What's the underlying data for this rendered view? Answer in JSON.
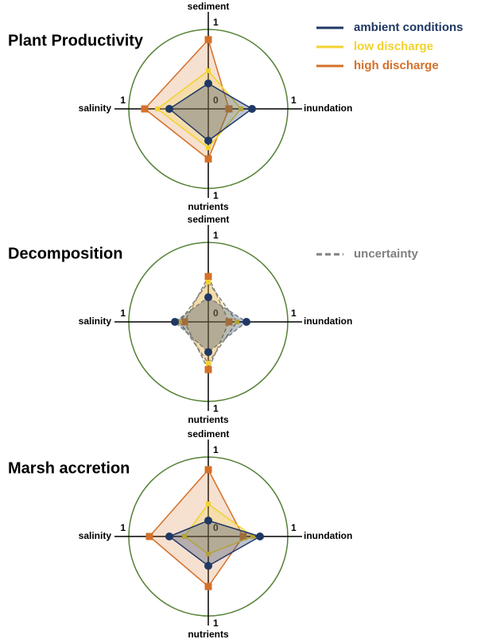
{
  "chart_data": [
    {
      "type": "radar",
      "title": "Plant Productivity",
      "categories": [
        "sediment",
        "inundation",
        "nutrients",
        "salinity"
      ],
      "rlim": [
        0,
        1
      ],
      "rticks": [
        0,
        1
      ],
      "legend": "top-right",
      "series": [
        {
          "name": "ambient conditions",
          "color": "#1f3864",
          "values": [
            0.32,
            0.55,
            0.4,
            0.49
          ]
        },
        {
          "name": "low discharge",
          "color": "#f2d22e",
          "values": [
            0.48,
            0.41,
            0.49,
            0.64
          ]
        },
        {
          "name": "high discharge",
          "color": "#d4702a",
          "values": [
            0.87,
            0.26,
            0.63,
            0.8
          ]
        }
      ]
    },
    {
      "type": "radar",
      "title": "Decomposition",
      "categories": [
        "sediment",
        "inundation",
        "nutrients",
        "salinity"
      ],
      "rlim": [
        0,
        1
      ],
      "rticks": [
        0,
        1
      ],
      "dashed": true,
      "dash_label": "uncertainty",
      "dash_color": "#7f7f7f",
      "series": [
        {
          "color": "#1f3864",
          "values": [
            0.31,
            0.48,
            0.38,
            0.42
          ]
        },
        {
          "color": "#f2d22e",
          "values": [
            0.5,
            0.36,
            0.52,
            0.36
          ]
        },
        {
          "color": "#d4702a",
          "values": [
            0.57,
            0.26,
            0.6,
            0.3
          ]
        }
      ]
    },
    {
      "type": "radar",
      "title": "Marsh accretion",
      "categories": [
        "sediment",
        "inundation",
        "nutrients",
        "salinity"
      ],
      "rlim": [
        0,
        1
      ],
      "rticks": [
        0,
        1
      ],
      "series": [
        {
          "color": "#1f3864",
          "values": [
            0.2,
            0.65,
            0.37,
            0.49
          ]
        },
        {
          "color": "#f2d22e",
          "values": [
            0.41,
            0.56,
            0.22,
            0.3
          ]
        },
        {
          "color": "#d4702a",
          "values": [
            0.84,
            0.44,
            0.63,
            0.74
          ]
        }
      ]
    }
  ]
}
